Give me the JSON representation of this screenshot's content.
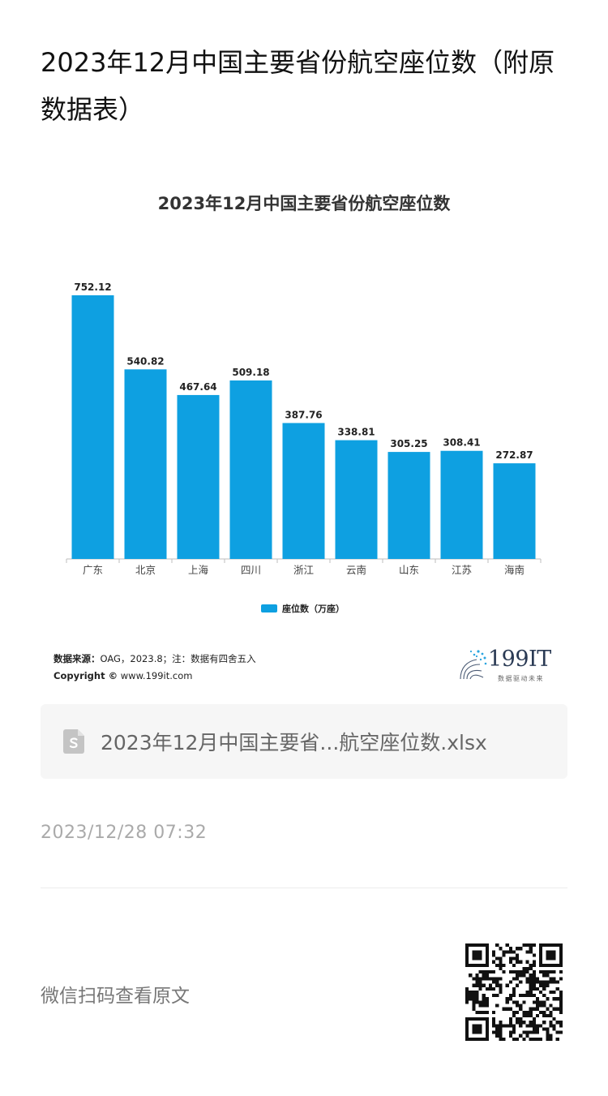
{
  "article": {
    "title": "2023年12月中国主要省份航空座位数（附原数据表）"
  },
  "chart_data": {
    "type": "bar",
    "title": "2023年12月中国主要省份航空座位数",
    "categories": [
      "广东",
      "北京",
      "上海",
      "四川",
      "浙江",
      "云南",
      "山东",
      "江苏",
      "海南"
    ],
    "series": [
      {
        "name": "座位数（万座）",
        "values": [
          752.12,
          540.82,
          467.64,
          509.18,
          387.76,
          338.81,
          305.25,
          308.41,
          272.87
        ],
        "color": "#0ea0e1"
      }
    ],
    "ylim": [
      0,
      752.12
    ],
    "grid": false,
    "legend": "bottom",
    "data_labels": true
  },
  "chart_footer": {
    "source_label": "数据来源：",
    "source_text": "OAG，2023.8；注：数据有四舍五入",
    "copyright_label": "Copyright ©",
    "copyright_text": " www.199it.com",
    "brand": "199IT",
    "brand_slogan": "数据驱动未来"
  },
  "attachment": {
    "file_name": "2023年12月中国主要省...航空座位数.xlsx",
    "icon": "spreadsheet-file-icon"
  },
  "meta": {
    "timestamp": "2023/12/28 07:32"
  },
  "footer": {
    "qr_hint": "微信扫码查看原文",
    "qr_icon": "qr-code-icon"
  }
}
